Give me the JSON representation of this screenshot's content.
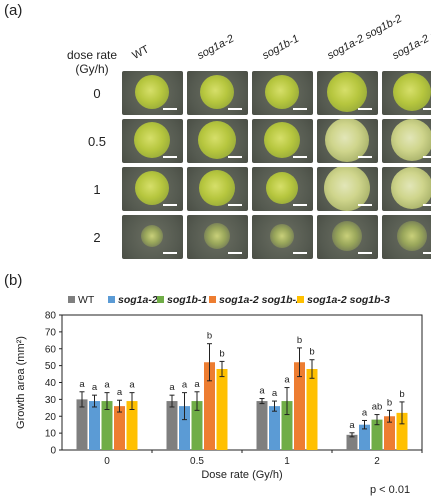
{
  "panel_a": {
    "label": "(a)",
    "row_header": "dose rate\n(Gy/h)",
    "columns": [
      {
        "text": "WT",
        "italic": false
      },
      {
        "text": "sog1a-2",
        "italic": true
      },
      {
        "text": "sog1b-1",
        "italic": true
      },
      {
        "text": "sog1a-2 sog1b-2",
        "italic": true
      },
      {
        "text": "sog1a-2 sog1b-3",
        "italic": true
      }
    ],
    "rows": [
      "0",
      "0.5",
      "1",
      "2"
    ]
  },
  "panel_b": {
    "label": "(b)",
    "p_note": "p < 0.01"
  },
  "chart_data": {
    "type": "bar",
    "xlabel": "Dose rate (Gy/h)",
    "ylabel": "Growth area (mm²)",
    "categories": [
      "0",
      "0.5",
      "1",
      "2"
    ],
    "ylim": [
      0,
      80
    ],
    "yticks": [
      0,
      10,
      20,
      30,
      40,
      50,
      60,
      70,
      80
    ],
    "legend_position": "top",
    "series": [
      {
        "name": "WT",
        "italic": false,
        "color": "#7f7f7f",
        "values": [
          30,
          29,
          29,
          9
        ],
        "errors": [
          4.5,
          3.5,
          1.5,
          1.2
        ],
        "letters": [
          "a",
          "a",
          "a",
          "a"
        ]
      },
      {
        "name": "sog1a-2",
        "italic": true,
        "color": "#5b9bd5",
        "values": [
          29,
          26,
          26,
          15
        ],
        "errors": [
          3.5,
          8,
          3,
          2.5
        ],
        "letters": [
          "a",
          "a",
          "a",
          "a"
        ]
      },
      {
        "name": "sog1b-1",
        "italic": true,
        "color": "#70ad47",
        "values": [
          29,
          29,
          29,
          18
        ],
        "errors": [
          5,
          5.5,
          8,
          3
        ],
        "letters": [
          "a",
          "a",
          "a",
          "ab"
        ]
      },
      {
        "name": "sog1a-2 sog1b-2",
        "italic": true,
        "color": "#ed7d31",
        "values": [
          26,
          52,
          52,
          20
        ],
        "errors": [
          3.5,
          11,
          8.5,
          3.5
        ],
        "letters": [
          "a",
          "b",
          "b",
          "b"
        ]
      },
      {
        "name": "sog1a-2 sog1b-3",
        "italic": true,
        "color": "#ffc000",
        "values": [
          29,
          48,
          48,
          22
        ],
        "errors": [
          5,
          4.5,
          5.5,
          6.5
        ],
        "letters": [
          "a",
          "b",
          "b",
          "b"
        ]
      }
    ]
  }
}
